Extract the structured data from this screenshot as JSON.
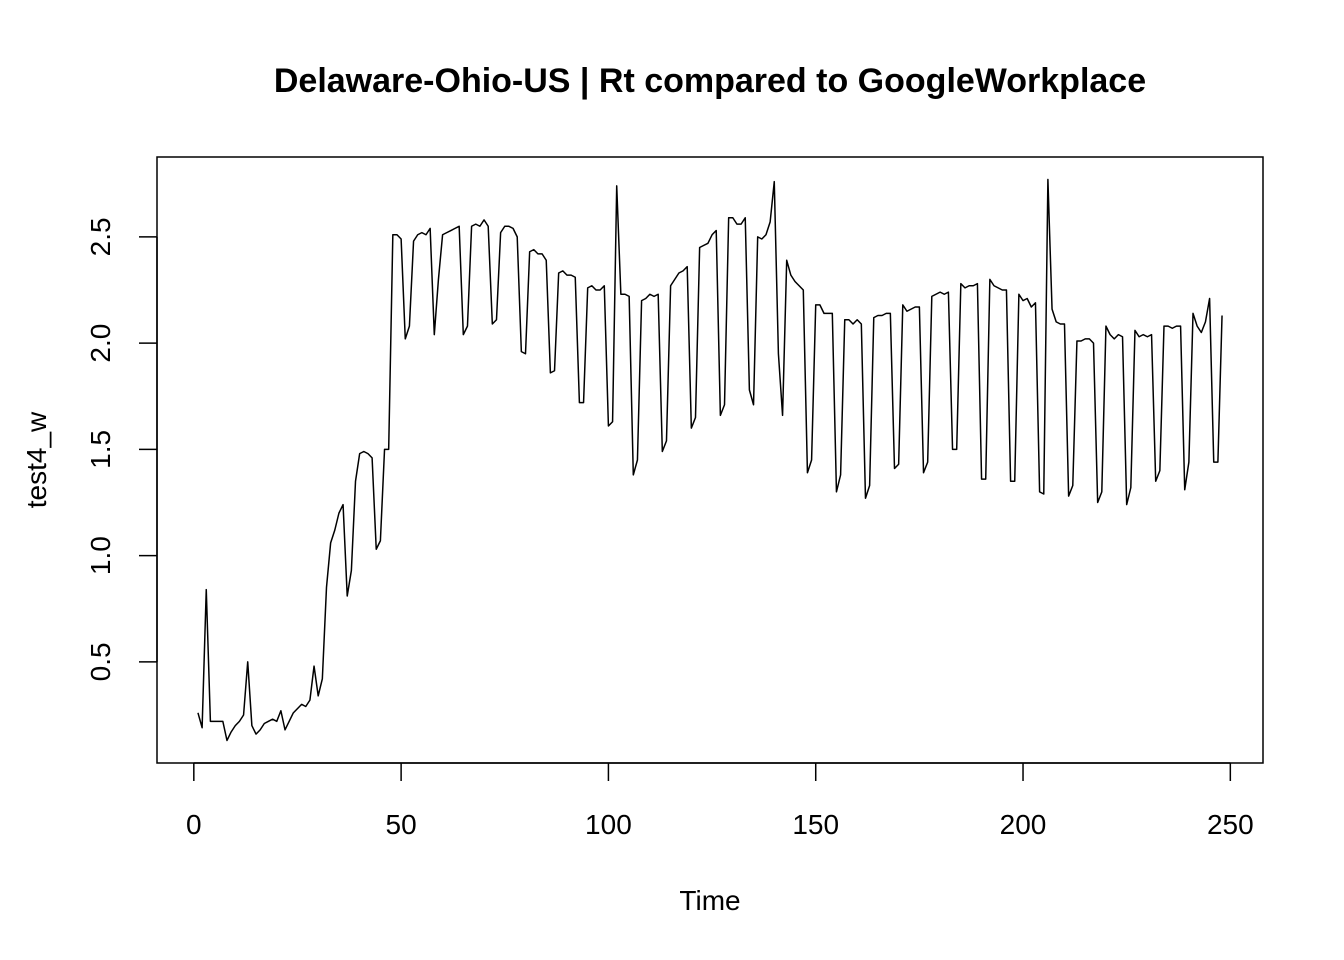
{
  "chart_data": {
    "type": "line",
    "title": "Delaware-Ohio-US | Rt compared to GoogleWorkplace",
    "x_label": "Time",
    "y_label": "test4_w",
    "color": "#000000",
    "x": [
      1,
      2,
      3,
      4,
      5,
      6,
      7,
      8,
      9,
      10,
      11,
      12,
      13,
      14,
      15,
      16,
      17,
      18,
      19,
      20,
      21,
      22,
      23,
      24,
      25,
      26,
      27,
      28,
      29,
      30,
      31,
      32,
      33,
      34,
      35,
      36,
      37,
      38,
      39,
      40,
      41,
      42,
      43,
      44,
      45,
      46,
      47,
      48,
      49,
      50,
      51,
      52,
      53,
      54,
      55,
      56,
      57,
      58,
      59,
      60,
      61,
      62,
      63,
      64,
      65,
      66,
      67,
      68,
      69,
      70,
      71,
      72,
      73,
      74,
      75,
      76,
      77,
      78,
      79,
      80,
      81,
      82,
      83,
      84,
      85,
      86,
      87,
      88,
      89,
      90,
      91,
      92,
      93,
      94,
      95,
      96,
      97,
      98,
      99,
      100,
      101,
      102,
      103,
      104,
      105,
      106,
      107,
      108,
      109,
      110,
      111,
      112,
      113,
      114,
      115,
      116,
      117,
      118,
      119,
      120,
      121,
      122,
      123,
      124,
      125,
      126,
      127,
      128,
      129,
      130,
      131,
      132,
      133,
      134,
      135,
      136,
      137,
      138,
      139,
      140,
      141,
      142,
      143,
      144,
      145,
      146,
      147,
      148,
      149,
      150,
      151,
      152,
      153,
      154,
      155,
      156,
      157,
      158,
      159,
      160,
      161,
      162,
      163,
      164,
      165,
      166,
      167,
      168,
      169,
      170,
      171,
      172,
      173,
      174,
      175,
      176,
      177,
      178,
      179,
      180,
      181,
      182,
      183,
      184,
      185,
      186,
      187,
      188,
      189,
      190,
      191,
      192,
      193,
      194,
      195,
      196,
      197,
      198,
      199,
      200,
      201,
      202,
      203,
      204,
      205,
      206,
      207,
      208,
      209,
      210,
      211,
      212,
      213,
      214,
      215,
      216,
      217,
      218,
      219,
      220,
      221,
      222,
      223,
      224,
      225,
      226,
      227,
      228,
      229,
      230,
      231,
      232,
      233,
      234,
      235,
      236,
      237,
      238,
      239,
      240,
      241,
      242,
      243,
      244,
      245,
      246,
      247,
      248
    ],
    "values": [
      0.26,
      0.19,
      0.84,
      0.22,
      0.22,
      0.22,
      0.22,
      0.13,
      0.17,
      0.2,
      0.22,
      0.25,
      0.5,
      0.2,
      0.16,
      0.18,
      0.21,
      0.22,
      0.23,
      0.22,
      0.27,
      0.18,
      0.22,
      0.26,
      0.28,
      0.3,
      0.29,
      0.32,
      0.48,
      0.34,
      0.42,
      0.85,
      1.06,
      1.12,
      1.2,
      1.24,
      0.81,
      0.93,
      1.35,
      1.48,
      1.49,
      1.48,
      1.46,
      1.03,
      1.07,
      1.5,
      1.5,
      2.51,
      2.51,
      2.49,
      2.02,
      2.08,
      2.48,
      2.51,
      2.52,
      2.51,
      2.54,
      2.04,
      2.3,
      2.51,
      2.52,
      2.53,
      2.54,
      2.55,
      2.04,
      2.08,
      2.55,
      2.56,
      2.55,
      2.58,
      2.55,
      2.09,
      2.11,
      2.52,
      2.55,
      2.55,
      2.54,
      2.5,
      1.96,
      1.95,
      2.43,
      2.44,
      2.42,
      2.42,
      2.39,
      1.86,
      1.87,
      2.33,
      2.34,
      2.32,
      2.32,
      2.31,
      1.72,
      1.72,
      2.26,
      2.27,
      2.25,
      2.25,
      2.27,
      1.61,
      1.63,
      2.74,
      2.23,
      2.23,
      2.22,
      1.38,
      1.45,
      2.2,
      2.21,
      2.23,
      2.22,
      2.23,
      1.49,
      1.54,
      2.27,
      2.3,
      2.33,
      2.34,
      2.36,
      1.6,
      1.65,
      2.45,
      2.46,
      2.47,
      2.51,
      2.53,
      1.66,
      1.71,
      2.59,
      2.59,
      2.56,
      2.56,
      2.59,
      1.78,
      1.71,
      2.5,
      2.49,
      2.51,
      2.57,
      2.76,
      1.95,
      1.66,
      2.39,
      2.32,
      2.29,
      2.27,
      2.25,
      1.39,
      1.45,
      2.18,
      2.18,
      2.14,
      2.14,
      2.14,
      1.3,
      1.38,
      2.11,
      2.11,
      2.09,
      2.11,
      2.09,
      1.27,
      1.33,
      2.12,
      2.13,
      2.13,
      2.14,
      2.14,
      1.41,
      1.43,
      2.18,
      2.15,
      2.16,
      2.17,
      2.17,
      1.39,
      1.44,
      2.22,
      2.23,
      2.24,
      2.23,
      2.24,
      1.5,
      1.5,
      2.28,
      2.26,
      2.27,
      2.27,
      2.28,
      1.36,
      1.36,
      2.3,
      2.27,
      2.26,
      2.25,
      2.25,
      1.35,
      1.35,
      2.23,
      2.2,
      2.21,
      2.17,
      2.19,
      1.3,
      1.29,
      2.77,
      2.16,
      2.1,
      2.09,
      2.09,
      1.28,
      1.33,
      2.01,
      2.01,
      2.02,
      2.02,
      2.0,
      1.25,
      1.3,
      2.08,
      2.04,
      2.02,
      2.04,
      2.03,
      1.24,
      1.32,
      2.06,
      2.03,
      2.04,
      2.03,
      2.04,
      1.35,
      1.4,
      2.08,
      2.08,
      2.07,
      2.08,
      2.08,
      1.31,
      1.44,
      2.14,
      2.08,
      2.05,
      2.1,
      2.21,
      1.44,
      1.44,
      2.13
    ],
    "xlim": [
      -8.88,
      257.88
    ],
    "xticks": [
      0,
      50,
      100,
      150,
      200,
      250
    ],
    "ylim": [
      0.024,
      2.876
    ],
    "yticks": [
      0.5,
      {
        "value": 1,
        "label": "1.0"
      },
      1.5,
      {
        "value": 2,
        "label": "2.0"
      },
      2.5
    ]
  }
}
